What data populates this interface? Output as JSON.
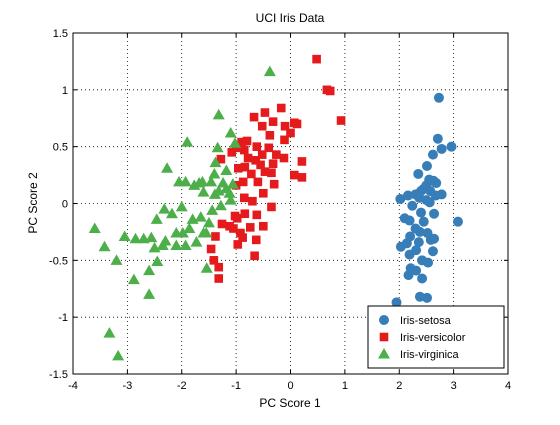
{
  "chart_data": {
    "type": "scatter",
    "title": "UCI Iris Data",
    "xlabel": "PC Score 1",
    "ylabel": "PC Score 2",
    "xlim": [
      -4,
      4
    ],
    "ylim": [
      -1.5,
      1.5
    ],
    "xticks": [
      -4,
      -3,
      -2,
      -1,
      0,
      1,
      2,
      3,
      4
    ],
    "yticks": [
      -1.5,
      -1,
      -0.5,
      0,
      0.5,
      1,
      1.5
    ],
    "grid": true,
    "legend_position": "bottom-right",
    "series": [
      {
        "name": "Iris-setosa",
        "marker": "circle",
        "color": "#377eb8",
        "points": [
          [
            2.73,
            0.93
          ],
          [
            2.71,
            0.57
          ],
          [
            2.78,
            0.48
          ],
          [
            2.96,
            0.5
          ],
          [
            2.62,
            0.43
          ],
          [
            2.51,
            0.33
          ],
          [
            2.55,
            0.21
          ],
          [
            2.35,
            0.26
          ],
          [
            2.63,
            0.2
          ],
          [
            2.68,
            0.18
          ],
          [
            2.5,
            0.16
          ],
          [
            2.45,
            0.13
          ],
          [
            2.57,
            0.11
          ],
          [
            2.4,
            0.11
          ],
          [
            2.3,
            0.08
          ],
          [
            2.16,
            0.07
          ],
          [
            2.37,
            0.05
          ],
          [
            2.5,
            0.03
          ],
          [
            2.02,
            0.04
          ],
          [
            2.67,
            0.07
          ],
          [
            2.78,
            0.08
          ],
          [
            2.56,
            0.01
          ],
          [
            2.24,
            -0.02
          ],
          [
            2.1,
            -0.13
          ],
          [
            2.4,
            -0.08
          ],
          [
            2.64,
            -0.09
          ],
          [
            2.19,
            -0.15
          ],
          [
            2.45,
            -0.16
          ],
          [
            3.08,
            -0.16
          ],
          [
            2.3,
            -0.22
          ],
          [
            2.38,
            -0.25
          ],
          [
            2.52,
            -0.26
          ],
          [
            2.2,
            -0.29
          ],
          [
            2.64,
            -0.31
          ],
          [
            2.58,
            -0.32
          ],
          [
            2.14,
            -0.35
          ],
          [
            2.36,
            -0.34
          ],
          [
            2.03,
            -0.38
          ],
          [
            2.31,
            -0.41
          ],
          [
            2.62,
            -0.42
          ],
          [
            2.19,
            -0.45
          ],
          [
            2.42,
            -0.5
          ],
          [
            2.53,
            -0.52
          ],
          [
            2.21,
            -0.57
          ],
          [
            2.31,
            -0.59
          ],
          [
            2.17,
            -0.63
          ],
          [
            2.42,
            -0.66
          ],
          [
            2.38,
            -0.82
          ],
          [
            2.51,
            -0.83
          ],
          [
            1.95,
            -0.87
          ]
        ]
      },
      {
        "name": "Iris-versicolor",
        "marker": "square",
        "color": "#e41a1c",
        "points": [
          [
            0.48,
            1.27
          ],
          [
            0.67,
            1.0
          ],
          [
            0.73,
            0.99
          ],
          [
            0.93,
            0.73
          ],
          [
            -0.17,
            0.84
          ],
          [
            -0.47,
            0.8
          ],
          [
            -0.67,
            0.76
          ],
          [
            -0.32,
            0.72
          ],
          [
            0.07,
            0.71
          ],
          [
            0.12,
            0.7
          ],
          [
            -0.1,
            0.68
          ],
          [
            -0.52,
            0.68
          ],
          [
            0.0,
            0.62
          ],
          [
            -0.38,
            0.6
          ],
          [
            -0.8,
            0.55
          ],
          [
            -0.4,
            0.49
          ],
          [
            -0.11,
            0.56
          ],
          [
            -0.9,
            0.54
          ],
          [
            -0.62,
            0.5
          ],
          [
            -0.52,
            0.43
          ],
          [
            -0.85,
            0.47
          ],
          [
            -1.0,
            0.49
          ],
          [
            -1.08,
            0.45
          ],
          [
            -0.26,
            0.43
          ],
          [
            -0.12,
            0.4
          ],
          [
            -0.78,
            0.4
          ],
          [
            -0.64,
            0.38
          ],
          [
            -0.55,
            0.34
          ],
          [
            -0.32,
            0.35
          ],
          [
            0.21,
            0.37
          ],
          [
            -1.28,
            0.39
          ],
          [
            -0.84,
            0.32
          ],
          [
            -0.96,
            0.31
          ],
          [
            -0.47,
            0.28
          ],
          [
            0.07,
            0.25
          ],
          [
            -0.35,
            0.27
          ],
          [
            -0.72,
            0.26
          ],
          [
            -0.6,
            0.19
          ],
          [
            -0.87,
            0.19
          ],
          [
            -0.3,
            0.17
          ],
          [
            -1.0,
            0.16
          ],
          [
            0.21,
            0.23
          ],
          [
            -0.5,
            0.09
          ],
          [
            -0.85,
            0.05
          ],
          [
            -0.7,
            0.02
          ],
          [
            -0.35,
            -0.03
          ],
          [
            -0.84,
            -0.09
          ],
          [
            -0.62,
            -0.1
          ],
          [
            -1.02,
            -0.11
          ],
          [
            -0.98,
            -0.13
          ],
          [
            -0.5,
            -0.2
          ],
          [
            -0.74,
            -0.21
          ],
          [
            -1.12,
            -0.2
          ],
          [
            -1.26,
            -0.18
          ],
          [
            -1.05,
            -0.22
          ],
          [
            -0.92,
            -0.26
          ],
          [
            -1.38,
            -0.29
          ],
          [
            -0.88,
            -0.3
          ],
          [
            -0.63,
            -0.32
          ],
          [
            -0.97,
            -0.36
          ],
          [
            -1.46,
            -0.4
          ],
          [
            -0.66,
            -0.46
          ],
          [
            -1.41,
            -0.5
          ],
          [
            -1.32,
            -0.56
          ],
          [
            -1.32,
            -0.66
          ]
        ]
      },
      {
        "name": "Iris-virginica",
        "marker": "triangle",
        "color": "#4daf4a",
        "points": [
          [
            -0.38,
            1.16
          ],
          [
            -1.32,
            0.78
          ],
          [
            -1.1,
            0.62
          ],
          [
            -1.02,
            0.53
          ],
          [
            -1.9,
            0.54
          ],
          [
            -1.34,
            0.49
          ],
          [
            -1.38,
            0.36
          ],
          [
            -1.4,
            0.26
          ],
          [
            -1.18,
            0.29
          ],
          [
            -1.46,
            0.19
          ],
          [
            -2.27,
            0.31
          ],
          [
            -2.05,
            0.19
          ],
          [
            -1.93,
            0.19
          ],
          [
            -1.68,
            0.18
          ],
          [
            -1.62,
            0.19
          ],
          [
            -1.77,
            0.16
          ],
          [
            -1.24,
            0.18
          ],
          [
            -1.06,
            0.17
          ],
          [
            -1.18,
            0.13
          ],
          [
            -1.32,
            0.11
          ],
          [
            -1.12,
            0.09
          ],
          [
            -1.6,
            0.1
          ],
          [
            -1.39,
            0.08
          ],
          [
            -1.1,
            0.03
          ],
          [
            -2.0,
            -0.03
          ],
          [
            -1.28,
            -0.02
          ],
          [
            -1.44,
            -0.06
          ],
          [
            -2.32,
            -0.05
          ],
          [
            -1.65,
            -0.12
          ],
          [
            -2.18,
            -0.09
          ],
          [
            -1.5,
            -0.17
          ],
          [
            -1.8,
            -0.14
          ],
          [
            -2.46,
            -0.14
          ],
          [
            -1.55,
            -0.26
          ],
          [
            -1.86,
            -0.22
          ],
          [
            -1.6,
            -0.26
          ],
          [
            -1.98,
            -0.26
          ],
          [
            -2.1,
            -0.26
          ],
          [
            -2.3,
            -0.33
          ],
          [
            -2.56,
            -0.3
          ],
          [
            -2.7,
            -0.31
          ],
          [
            -3.05,
            -0.29
          ],
          [
            -2.85,
            -0.31
          ],
          [
            -1.73,
            -0.34
          ],
          [
            -1.93,
            -0.37
          ],
          [
            -2.1,
            -0.37
          ],
          [
            -2.35,
            -0.37
          ],
          [
            -2.5,
            -0.39
          ],
          [
            -3.6,
            -0.22
          ],
          [
            -3.42,
            -0.38
          ],
          [
            -3.2,
            -0.5
          ],
          [
            -2.45,
            -0.51
          ],
          [
            -2.6,
            -0.59
          ],
          [
            -2.88,
            -0.67
          ],
          [
            -2.6,
            -0.8
          ],
          [
            -1.54,
            -0.57
          ],
          [
            -3.33,
            -1.14
          ],
          [
            -3.17,
            -1.34
          ]
        ]
      }
    ]
  }
}
